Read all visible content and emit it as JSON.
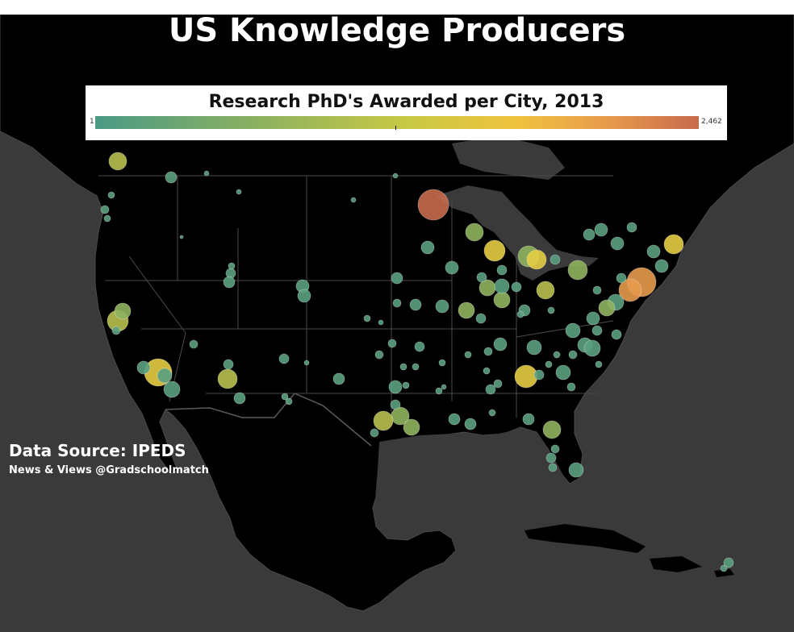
{
  "title": "US Knowledge Producers",
  "legend": {
    "title": "Research PhD's Awarded per City, 2013",
    "min_label": "1",
    "max_label": "2,462",
    "min_value": 1,
    "max_value": 2462,
    "colors": [
      "#4a9a86",
      "#8fb25e",
      "#c9c944",
      "#f0c23e",
      "#e79a4c",
      "#c86a4d"
    ]
  },
  "source": "Data Source: IPEDS",
  "credit": "News & Views @Gradschoolmatch",
  "map_colors": {
    "ocean": "#3a3a3a",
    "land": "#000000",
    "borders": "#555555"
  }
}
